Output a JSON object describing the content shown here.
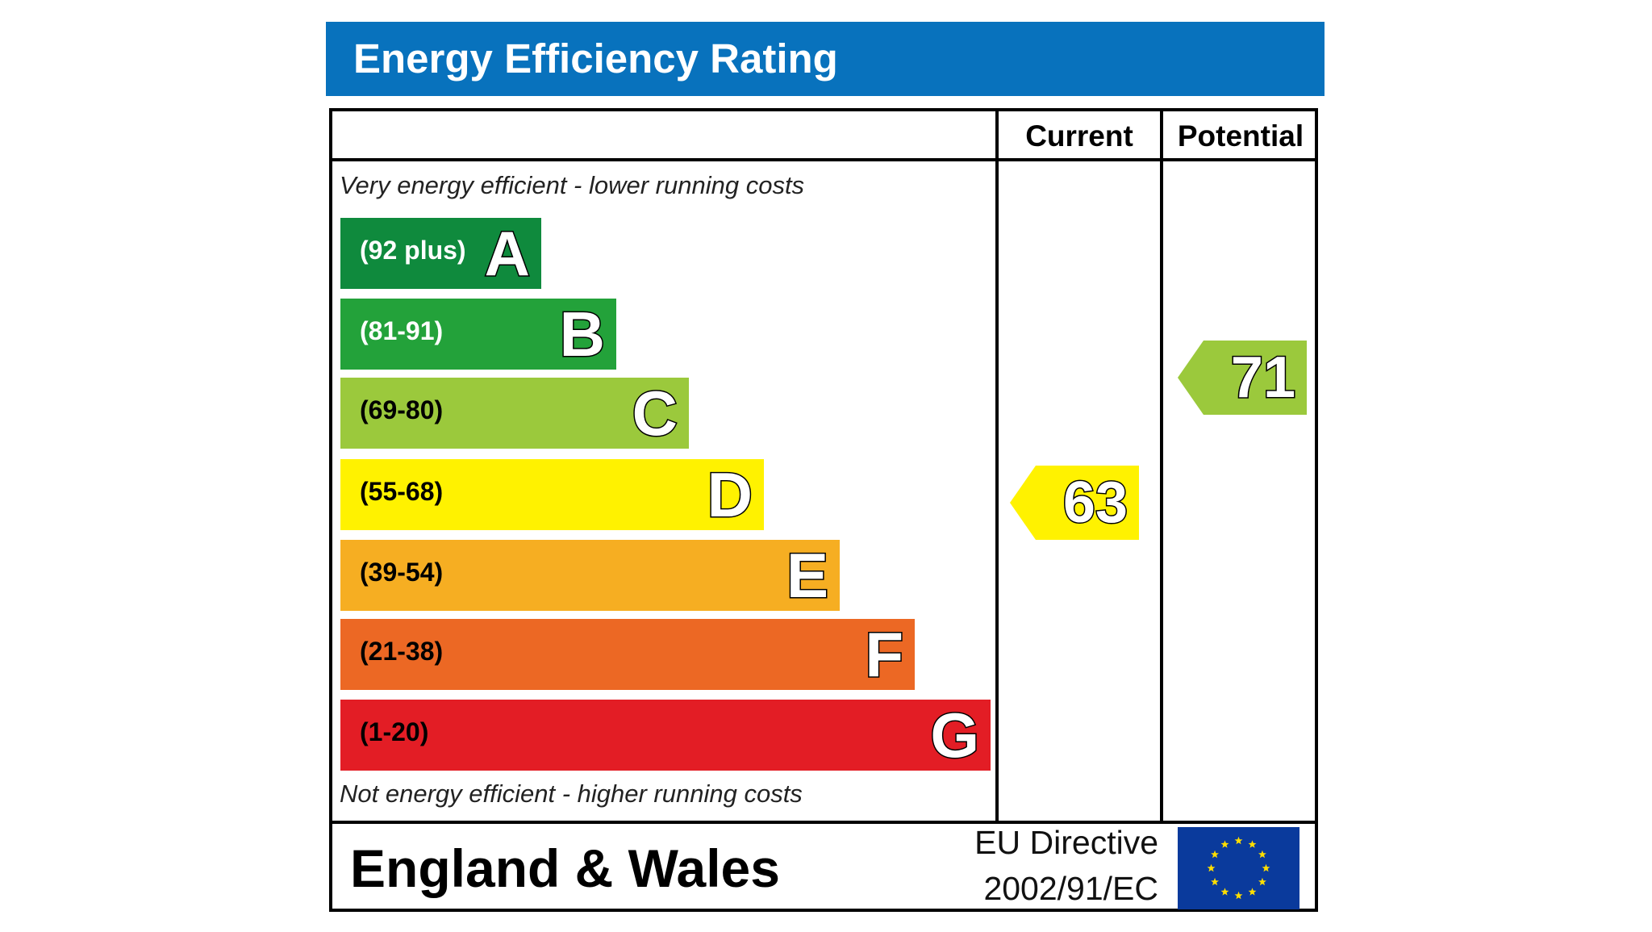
{
  "header": {
    "title": "Energy Efficiency Rating"
  },
  "table": {
    "columns": [
      "Current",
      "Potential"
    ],
    "top_caption": "Very energy efficient - lower running costs",
    "bottom_caption": "Not energy efficient - higher running costs"
  },
  "footer": {
    "country": "England & Wales",
    "directive_line1": "EU Directive",
    "directive_line2": "2002/91/EC",
    "flag_icon": "eu-flag-icon"
  },
  "colors": {
    "title_bar": "#0872bd",
    "A": "#0f8a3d",
    "B": "#23a23a",
    "C": "#9bc93c",
    "D": "#fff200",
    "E": "#f6ae22",
    "F": "#ec6824",
    "G": "#e31d25",
    "eu_blue": "#0a3a9c",
    "eu_star": "#ffde00"
  },
  "chart_data": {
    "type": "bar",
    "categories": [
      "A",
      "B",
      "C",
      "D",
      "E",
      "F",
      "G"
    ],
    "bands": [
      {
        "letter": "A",
        "range": "(92 plus)",
        "min": 92,
        "max": null,
        "text_color": "#ffffff"
      },
      {
        "letter": "B",
        "range": "(81-91)",
        "min": 81,
        "max": 91,
        "text_color": "#ffffff"
      },
      {
        "letter": "C",
        "range": "(69-80)",
        "min": 69,
        "max": 80,
        "text_color": "#000000"
      },
      {
        "letter": "D",
        "range": "(55-68)",
        "min": 55,
        "max": 68,
        "text_color": "#000000"
      },
      {
        "letter": "E",
        "range": "(39-54)",
        "min": 39,
        "max": 54,
        "text_color": "#000000"
      },
      {
        "letter": "F",
        "range": "(21-38)",
        "min": 21,
        "max": 38,
        "text_color": "#000000"
      },
      {
        "letter": "G",
        "range": "(1-20)",
        "min": 1,
        "max": 20,
        "text_color": "#000000"
      }
    ],
    "ratings": [
      {
        "column": "Current",
        "value": 63,
        "band": "D"
      },
      {
        "column": "Potential",
        "value": 71,
        "band": "C"
      }
    ]
  }
}
